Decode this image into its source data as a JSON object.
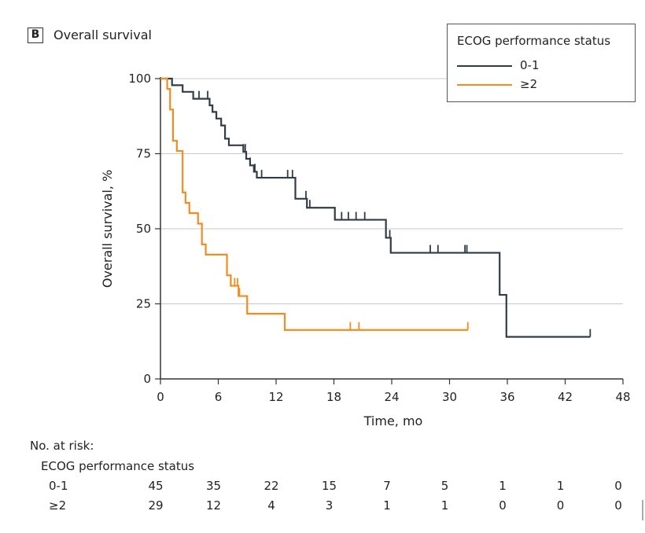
{
  "panel": {
    "letter": "B",
    "title": "Overall survival"
  },
  "legend": {
    "title": "ECOG performance status",
    "entries": [
      {
        "label": "0-1",
        "color": "#2f3e46"
      },
      {
        "label": "≥2",
        "color": "#f28c1e"
      }
    ]
  },
  "chart_data": {
    "type": "line",
    "step": true,
    "xlabel": "Time, mo",
    "ylabel": "Overall survival, %",
    "xlim": [
      0,
      48
    ],
    "ylim": [
      0,
      100
    ],
    "xticks": [
      0,
      6,
      12,
      18,
      24,
      30,
      36,
      42,
      48
    ],
    "yticks": [
      0,
      25,
      50,
      75,
      100
    ],
    "grid": "horizontal",
    "legend_position": "top-right",
    "series": [
      {
        "name": "0-1",
        "color": "#2f3e46",
        "x": [
          0,
          1.2,
          2.3,
          3.4,
          5.1,
          5.4,
          5.8,
          6.3,
          6.7,
          7.1,
          8.6,
          8.9,
          9.3,
          9.7,
          10.0,
          11.8,
          14.0,
          15.2,
          18.1,
          23.4,
          23.9,
          35.2,
          35.9,
          44.6
        ],
        "y": [
          100,
          97.8,
          95.6,
          93.3,
          91.1,
          88.9,
          86.7,
          84.4,
          80.0,
          77.8,
          75.6,
          73.3,
          71.1,
          69.0,
          67.0,
          67.0,
          60.0,
          57.0,
          53.0,
          47.0,
          42.0,
          28.0,
          14.0,
          14.0
        ],
        "censor_x": [
          4.0,
          4.9,
          8.6,
          8.8,
          9.3,
          9.8,
          10.5,
          13.2,
          13.7,
          15.1,
          15.5,
          18.8,
          19.5,
          20.3,
          21.2,
          23.8,
          28.0,
          28.8,
          31.6,
          31.8,
          44.6
        ]
      },
      {
        "name": "≥2",
        "color": "#f28c1e",
        "x": [
          0,
          0.7,
          1.0,
          1.3,
          1.7,
          2.3,
          2.6,
          3.0,
          3.9,
          4.3,
          4.7,
          5.4,
          6.9,
          7.3,
          8.1,
          9.0,
          12.9,
          31.9
        ],
        "y": [
          100,
          96.6,
          89.7,
          79.3,
          75.9,
          62.1,
          58.6,
          55.2,
          51.7,
          44.8,
          41.4,
          41.4,
          34.5,
          31.0,
          27.6,
          21.7,
          16.3,
          16.3
        ],
        "censor_x": [
          7.7,
          8.0,
          8.2,
          9.0,
          19.7,
          20.6,
          31.9
        ]
      }
    ]
  },
  "risk_table": {
    "title": "No. at risk:",
    "subtitle": "ECOG performance status",
    "rows": [
      {
        "label": "0-1",
        "values": [
          45,
          35,
          22,
          15,
          7,
          5,
          1,
          1,
          0
        ]
      },
      {
        "label": "≥2",
        "values": [
          29,
          12,
          4,
          3,
          1,
          1,
          0,
          0,
          0
        ]
      }
    ]
  }
}
